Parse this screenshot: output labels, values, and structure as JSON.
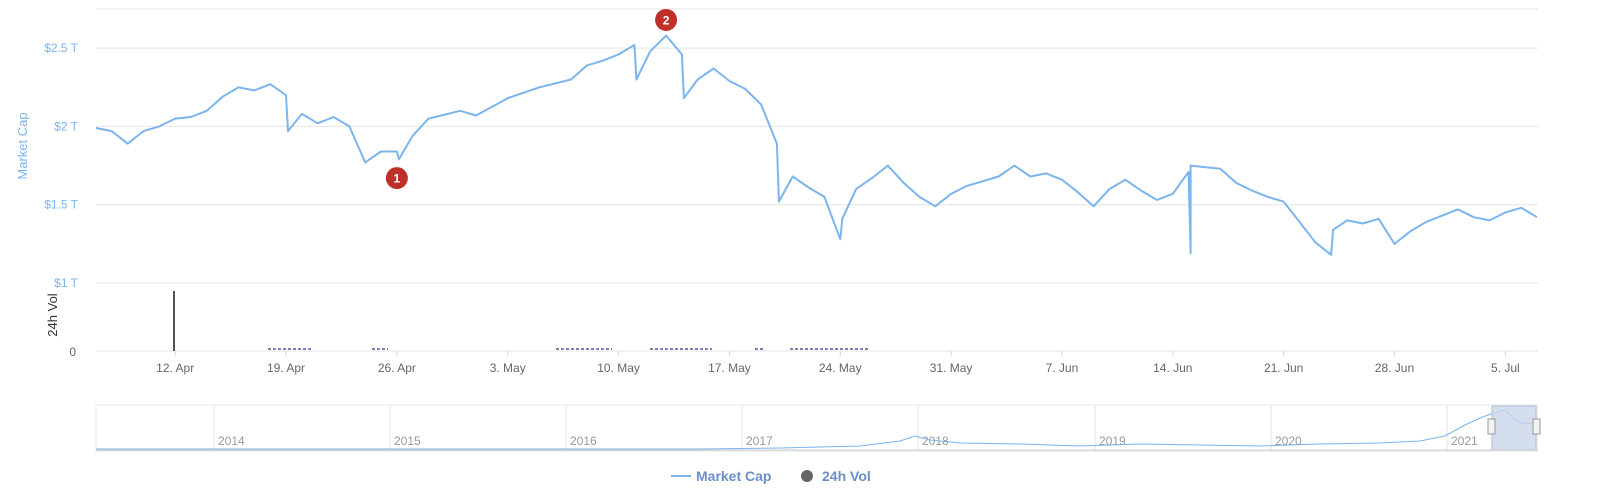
{
  "chart_data": {
    "type": "line",
    "y_axis": {
      "title": "Market Cap",
      "ticks": [
        "$1 T",
        "$1.5 T",
        "$2 T",
        "$2.5 T"
      ],
      "tick_values": [
        1.0,
        1.5,
        2.0,
        2.5
      ],
      "unit": "T",
      "range": [
        1.0,
        2.75
      ]
    },
    "volume_axis": {
      "title": "24h Vol",
      "ticks": [
        "0"
      ]
    },
    "x_axis": {
      "ticks": [
        "12. Apr",
        "19. Apr",
        "26. Apr",
        "3. May",
        "10. May",
        "17. May",
        "24. May",
        "31. May",
        "7. Jun",
        "14. Jun",
        "21. Jun",
        "28. Jun",
        "5. Jul"
      ],
      "range": [
        "2021-04-07",
        "2021-07-07"
      ]
    },
    "series": [
      {
        "name": "Market Cap",
        "color": "#7cb5ec",
        "points": [
          [
            "2021-04-07",
            1.99
          ],
          [
            "2021-04-08",
            1.97
          ],
          [
            "2021-04-09",
            1.89
          ],
          [
            "2021-04-10",
            1.97
          ],
          [
            "2021-04-11",
            2.0
          ],
          [
            "2021-04-12",
            2.05
          ],
          [
            "2021-04-13",
            2.06
          ],
          [
            "2021-04-14",
            2.1
          ],
          [
            "2021-04-15",
            2.19
          ],
          [
            "2021-04-16",
            2.25
          ],
          [
            "2021-04-17",
            2.23
          ],
          [
            "2021-04-18",
            2.27
          ],
          [
            "2021-04-19",
            2.2
          ],
          [
            "2021-04-19",
            1.97
          ],
          [
            "2021-04-20",
            2.08
          ],
          [
            "2021-04-21",
            2.02
          ],
          [
            "2021-04-22",
            2.06
          ],
          [
            "2021-04-23",
            2.0
          ],
          [
            "2021-04-24",
            1.77
          ],
          [
            "2021-04-25",
            1.84
          ],
          [
            "2021-04-26",
            1.84
          ],
          [
            "2021-04-26",
            1.79
          ],
          [
            "2021-04-27",
            1.94
          ],
          [
            "2021-04-28",
            2.05
          ],
          [
            "2021-04-30",
            2.1
          ],
          [
            "2021-05-01",
            2.07
          ],
          [
            "2021-05-03",
            2.18
          ],
          [
            "2021-05-05",
            2.25
          ],
          [
            "2021-05-07",
            2.3
          ],
          [
            "2021-05-08",
            2.39
          ],
          [
            "2021-05-09",
            2.42
          ],
          [
            "2021-05-10",
            2.46
          ],
          [
            "2021-05-11",
            2.52
          ],
          [
            "2021-05-11",
            2.3
          ],
          [
            "2021-05-12",
            2.48
          ],
          [
            "2021-05-13",
            2.58
          ],
          [
            "2021-05-14",
            2.46
          ],
          [
            "2021-05-14",
            2.18
          ],
          [
            "2021-05-15",
            2.3
          ],
          [
            "2021-05-16",
            2.37
          ],
          [
            "2021-05-17",
            2.29
          ],
          [
            "2021-05-18",
            2.24
          ],
          [
            "2021-05-19",
            2.14
          ],
          [
            "2021-05-20",
            1.89
          ],
          [
            "2021-05-20",
            1.52
          ],
          [
            "2021-05-21",
            1.68
          ],
          [
            "2021-05-22",
            1.61
          ],
          [
            "2021-05-23",
            1.55
          ],
          [
            "2021-05-24",
            1.28
          ],
          [
            "2021-05-24",
            1.41
          ],
          [
            "2021-05-25",
            1.6
          ],
          [
            "2021-05-26",
            1.67
          ],
          [
            "2021-05-27",
            1.75
          ],
          [
            "2021-05-28",
            1.64
          ],
          [
            "2021-05-29",
            1.55
          ],
          [
            "2021-05-30",
            1.49
          ],
          [
            "2021-05-31",
            1.57
          ],
          [
            "2021-06-01",
            1.62
          ],
          [
            "2021-06-03",
            1.68
          ],
          [
            "2021-06-04",
            1.75
          ],
          [
            "2021-06-05",
            1.68
          ],
          [
            "2021-06-06",
            1.7
          ],
          [
            "2021-06-07",
            1.66
          ],
          [
            "2021-06-08",
            1.58
          ],
          [
            "2021-06-09",
            1.49
          ],
          [
            "2021-06-10",
            1.6
          ],
          [
            "2021-06-11",
            1.66
          ],
          [
            "2021-06-12",
            1.59
          ],
          [
            "2021-06-13",
            1.53
          ],
          [
            "2021-06-14",
            1.57
          ],
          [
            "2021-06-15",
            1.71
          ],
          [
            "2021-06-15",
            1.19
          ],
          [
            "2021-06-15",
            1.75
          ],
          [
            "2021-06-17",
            1.73
          ],
          [
            "2021-06-18",
            1.64
          ],
          [
            "2021-06-19",
            1.59
          ],
          [
            "2021-06-20",
            1.55
          ],
          [
            "2021-06-21",
            1.52
          ],
          [
            "2021-06-22",
            1.39
          ],
          [
            "2021-06-23",
            1.26
          ],
          [
            "2021-06-24",
            1.18
          ],
          [
            "2021-06-24",
            1.34
          ],
          [
            "2021-06-25",
            1.4
          ],
          [
            "2021-06-26",
            1.38
          ],
          [
            "2021-06-27",
            1.41
          ],
          [
            "2021-06-28",
            1.25
          ],
          [
            "2021-06-29",
            1.33
          ],
          [
            "2021-06-30",
            1.39
          ],
          [
            "2021-07-01",
            1.43
          ],
          [
            "2021-07-02",
            1.47
          ],
          [
            "2021-07-03",
            1.42
          ],
          [
            "2021-07-04",
            1.4
          ],
          [
            "2021-07-05",
            1.45
          ],
          [
            "2021-07-06",
            1.48
          ],
          [
            "2021-07-07",
            1.42
          ]
        ]
      },
      {
        "name": "24h Vol",
        "color": "#666666"
      }
    ],
    "annotations": [
      {
        "label": "1",
        "date": "2021-04-26",
        "value": 1.67,
        "color": "#c0302a"
      },
      {
        "label": "2",
        "date": "2021-05-13",
        "value": 2.68,
        "color": "#c0302a"
      }
    ],
    "navigator": {
      "years": [
        "2014",
        "2015",
        "2016",
        "2017",
        "2018",
        "2019",
        "2020",
        "2021"
      ],
      "fill": "#c9d6ea"
    },
    "legend": {
      "placement": "bottom-center",
      "items": [
        "Market Cap",
        "24h Vol"
      ]
    },
    "grid": true
  }
}
